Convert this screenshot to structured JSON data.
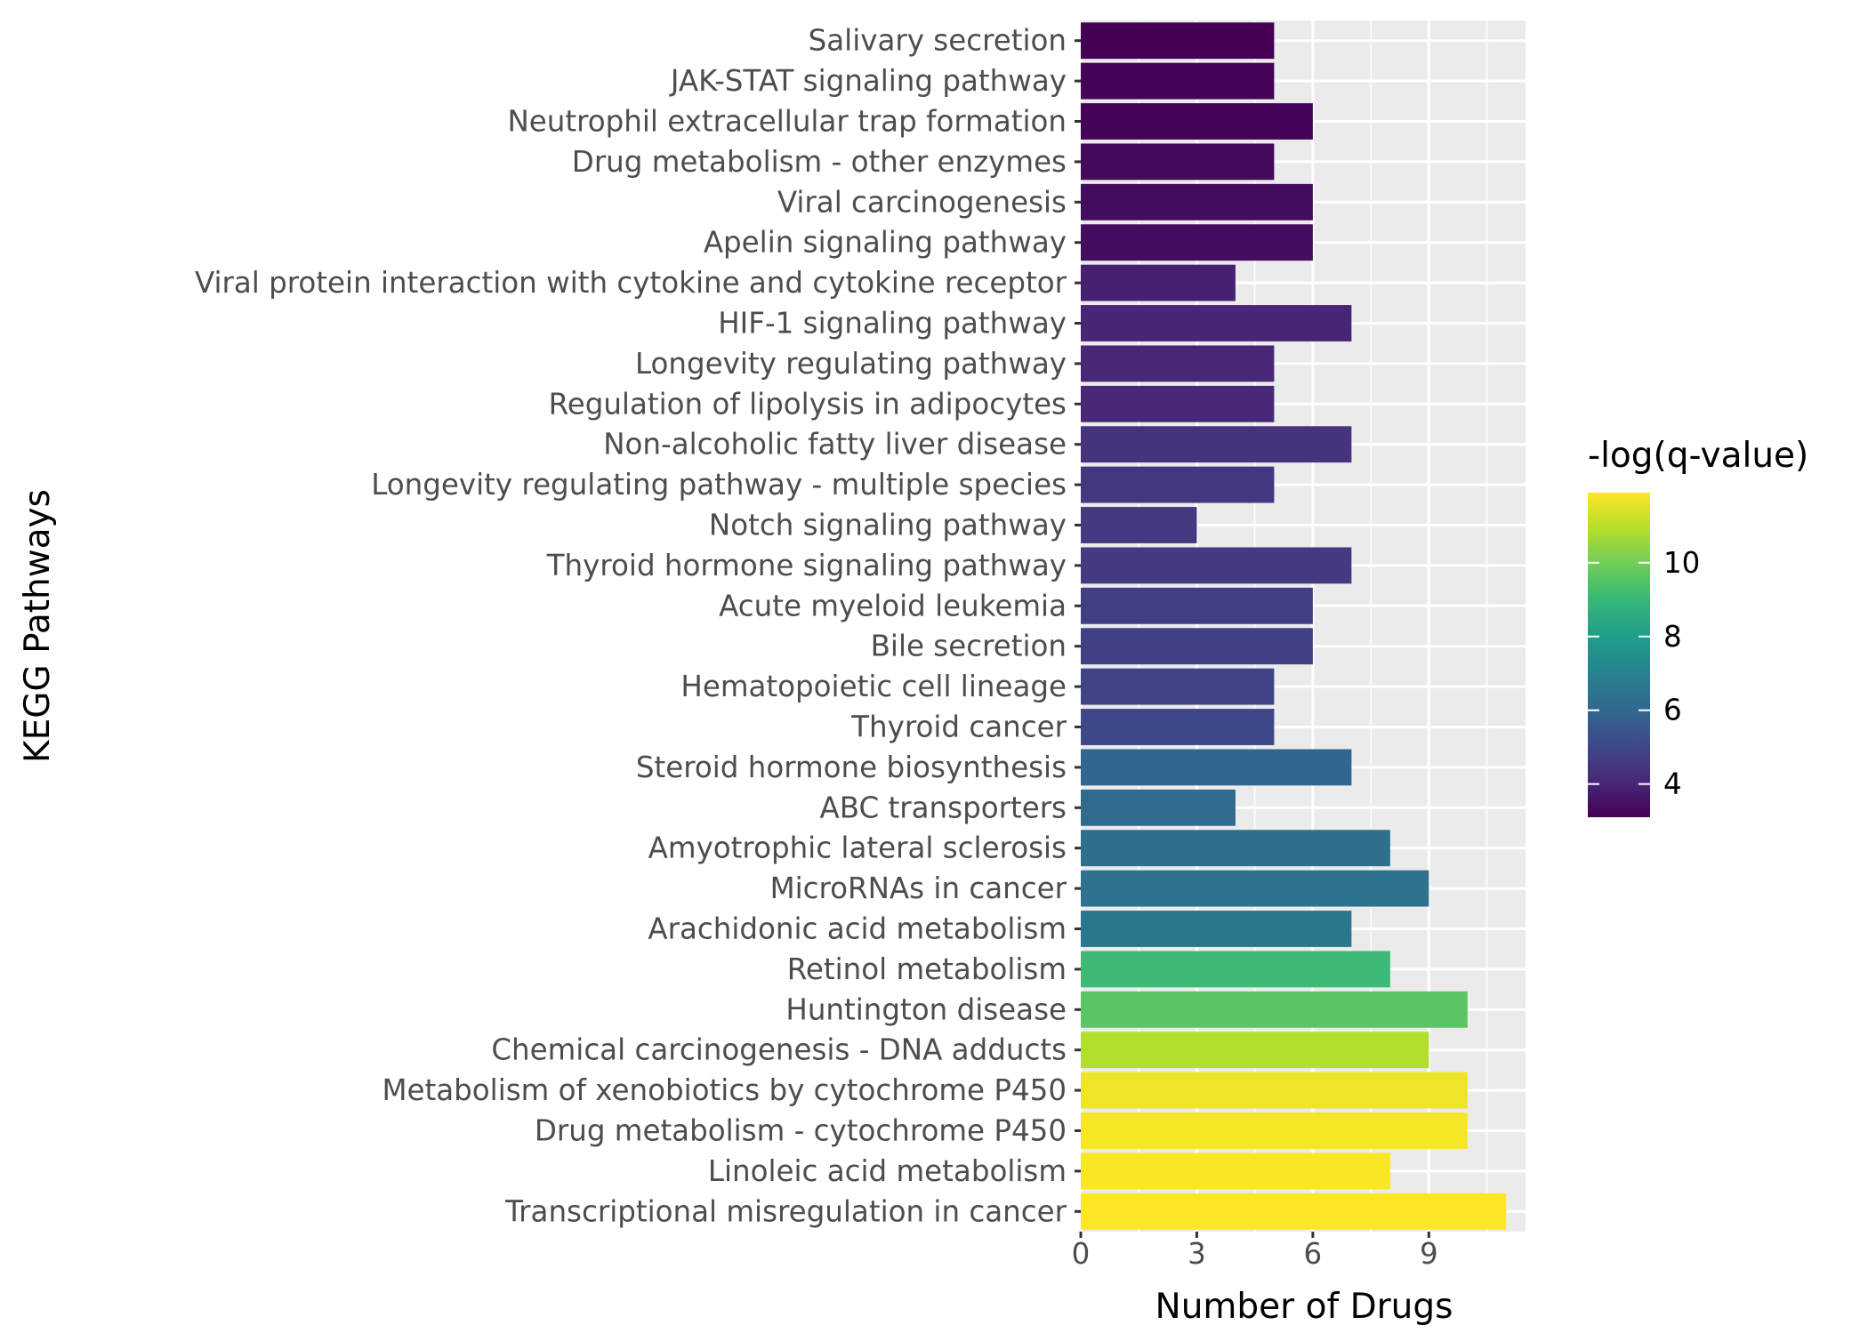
{
  "chart_data": {
    "type": "bar",
    "orientation": "horizontal",
    "xlabel": "Number of Drugs",
    "ylabel": "KEGG Pathways",
    "xlim": [
      0,
      11.5
    ],
    "xticks": [
      0,
      3,
      6,
      9
    ],
    "grid": true,
    "legend": {
      "title": "-log(q-value)",
      "position": "right",
      "range": [
        3.1,
        11.9
      ],
      "ticks": [
        4,
        6,
        8,
        10
      ],
      "palette": [
        "#440154",
        "#482878",
        "#3E4989",
        "#31688E",
        "#26828E",
        "#1F9E89",
        "#35B779",
        "#6DCD59",
        "#B4DE2C",
        "#FDE725"
      ]
    },
    "categories": [
      "Salivary secretion",
      "JAK-STAT signaling pathway",
      "Neutrophil extracellular trap formation",
      "Drug metabolism - other enzymes",
      "Viral carcinogenesis",
      "Apelin signaling pathway",
      "Viral protein interaction with cytokine and cytokine receptor",
      "HIF-1 signaling pathway",
      "Longevity regulating pathway",
      "Regulation of lipolysis in adipocytes",
      "Non-alcoholic fatty liver disease",
      "Longevity regulating pathway - multiple species",
      "Notch signaling pathway",
      "Thyroid hormone signaling pathway",
      "Acute myeloid leukemia",
      "Bile secretion",
      "Hematopoietic cell lineage",
      "Thyroid cancer",
      "Steroid hormone biosynthesis",
      "ABC transporters",
      "Amyotrophic lateral sclerosis",
      "MicroRNAs in cancer",
      "Arachidonic acid metabolism",
      "Retinol metabolism",
      "Huntington disease",
      "Chemical carcinogenesis - DNA adducts",
      "Metabolism of xenobiotics by cytochrome P450",
      "Drug metabolism - cytochrome P450",
      "Linoleic acid metabolism",
      "Transcriptional misregulation in cancer"
    ],
    "values": [
      5,
      5,
      6,
      5,
      6,
      6,
      4,
      7,
      5,
      5,
      7,
      5,
      3,
      7,
      6,
      6,
      5,
      5,
      7,
      4,
      8,
      9,
      7,
      8,
      10,
      9,
      10,
      10,
      8,
      11
    ],
    "color_values": [
      3.1,
      3.15,
      3.2,
      3.3,
      3.35,
      3.4,
      3.9,
      4.0,
      4.05,
      4.1,
      4.4,
      4.5,
      4.6,
      4.65,
      4.75,
      4.8,
      4.9,
      5.0,
      6.0,
      6.15,
      6.3,
      6.4,
      6.6,
      9.1,
      9.6,
      10.9,
      11.7,
      11.8,
      11.85,
      11.9
    ]
  }
}
